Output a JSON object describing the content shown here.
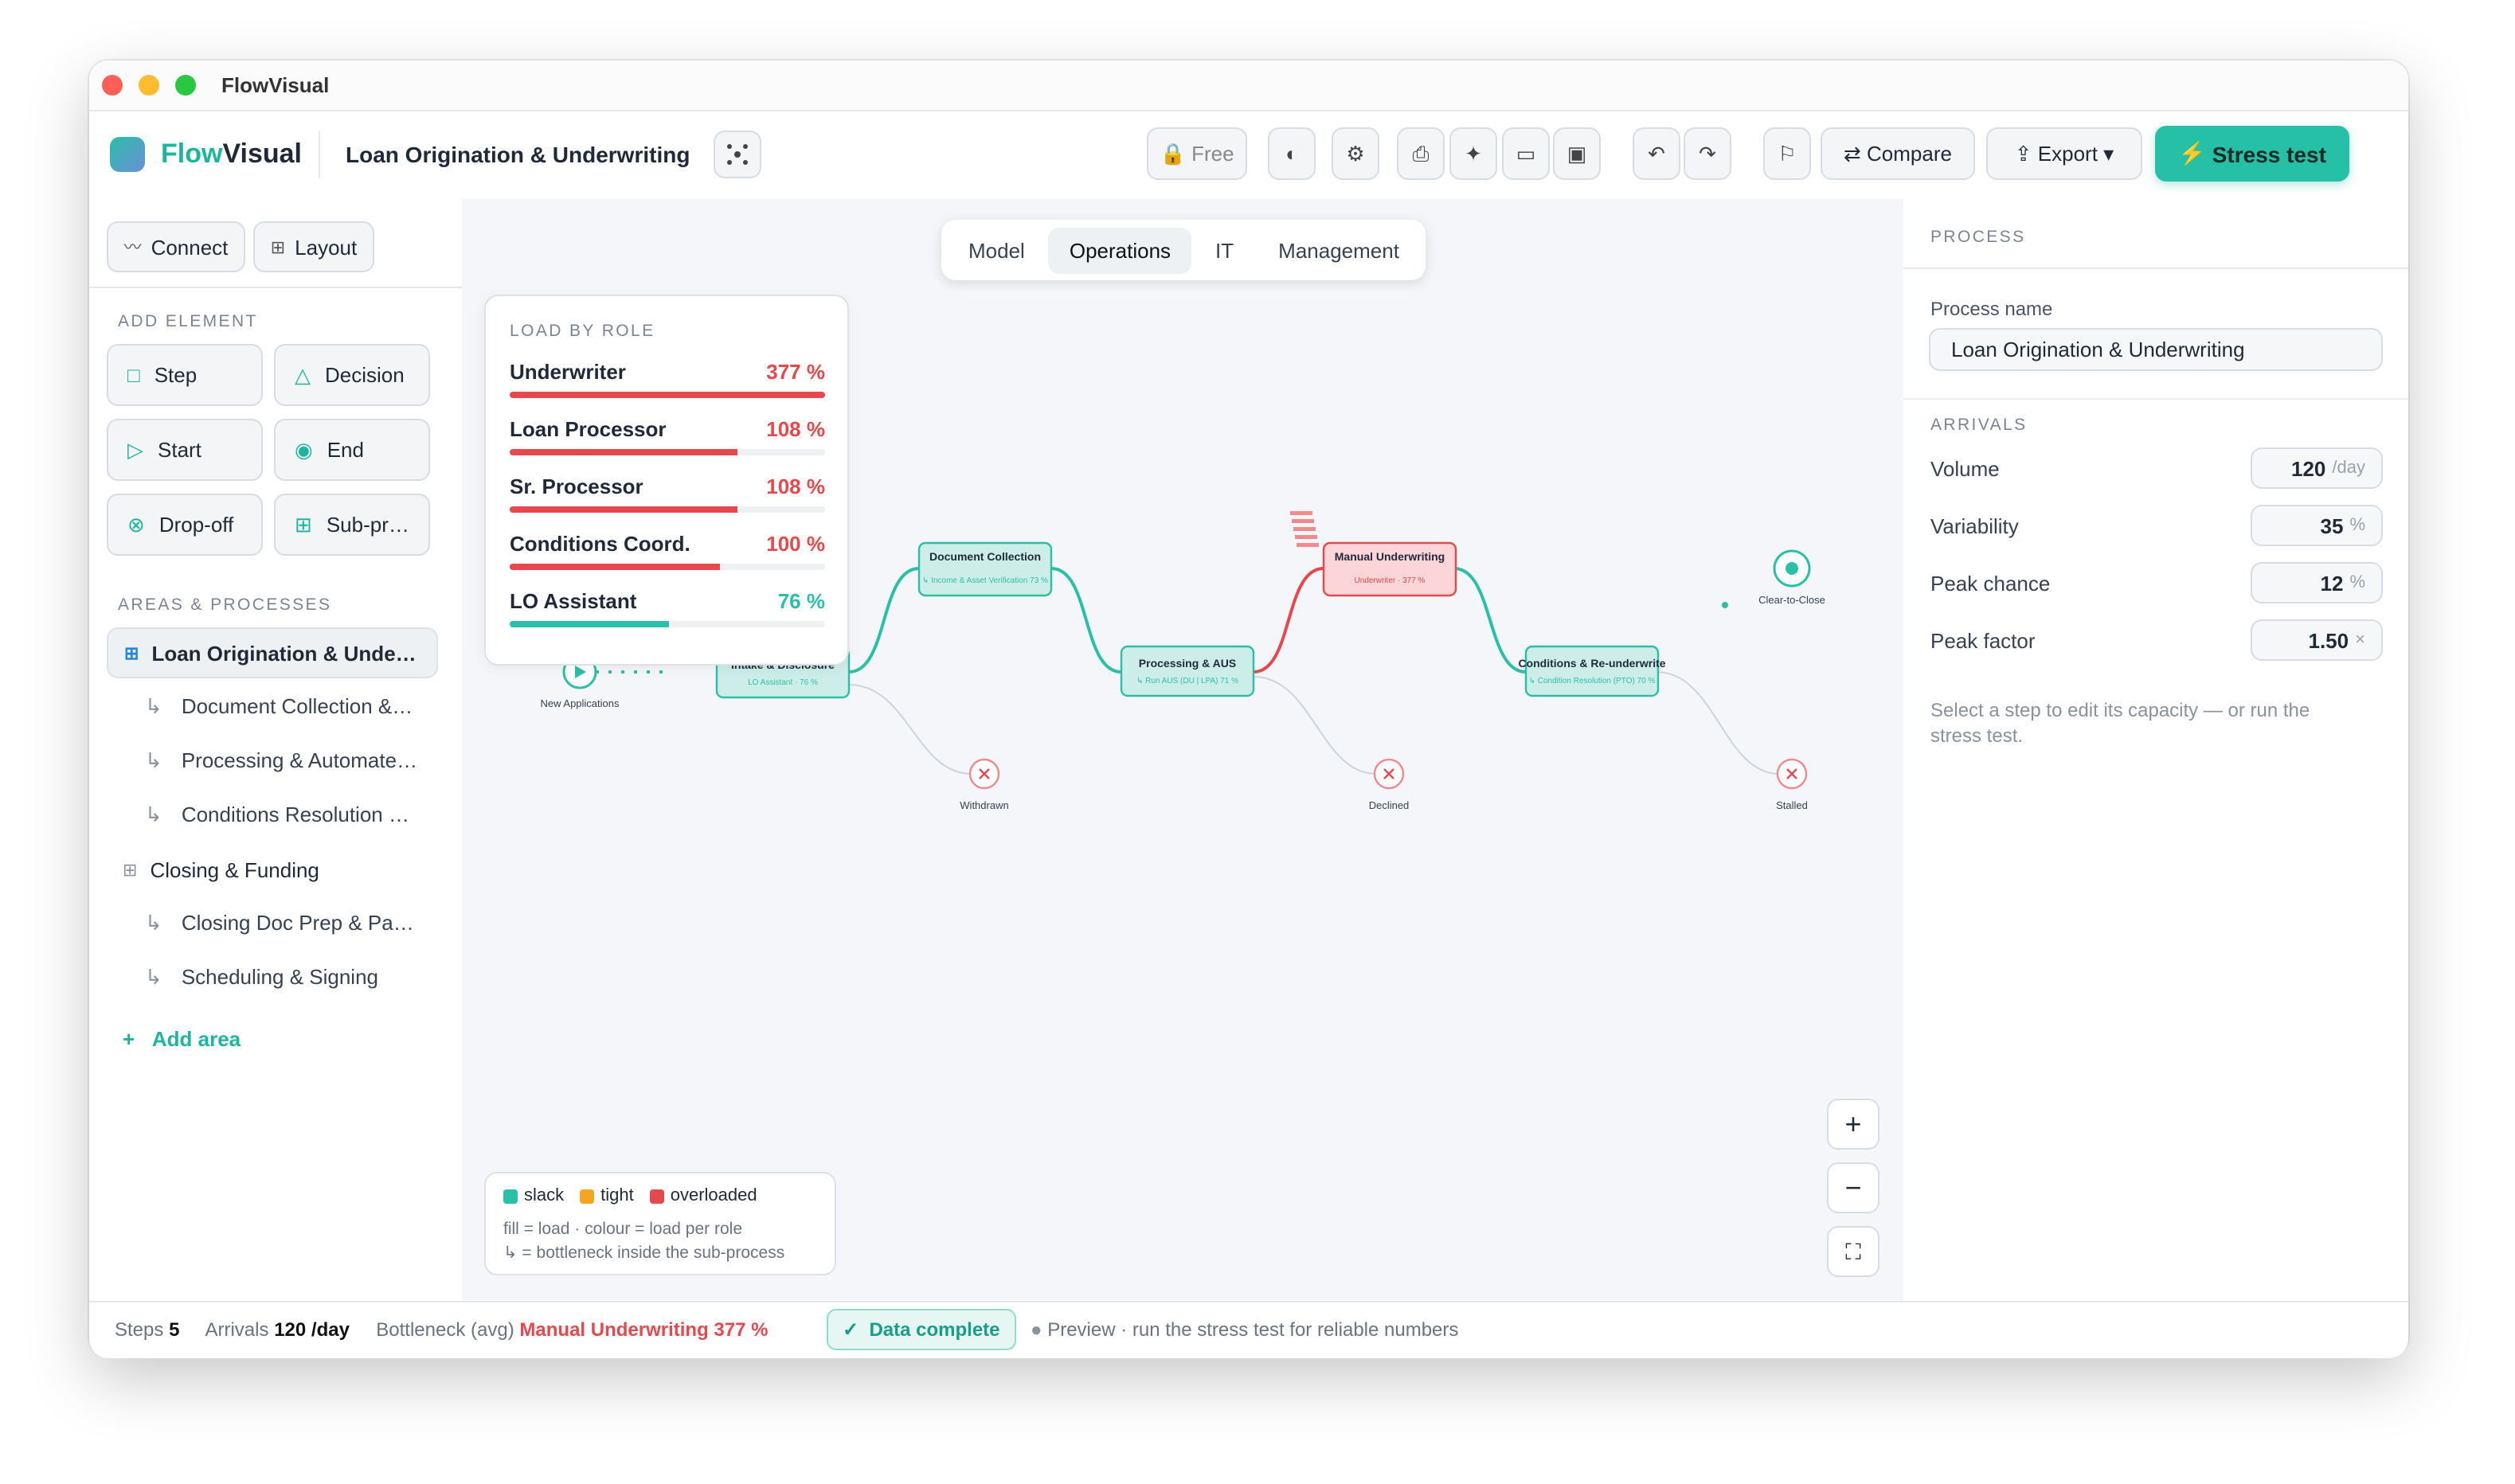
{
  "window": {
    "title": "FlowVisual"
  },
  "toolbar": {
    "brand_a": "Flow",
    "brand_b": "Visual",
    "document": "Loan Origination & Underwriting",
    "plan": "Free",
    "compare": "Compare",
    "export": "Export",
    "stress_test": "Stress test"
  },
  "sidebar": {
    "tools": [
      "Connect",
      "Layout"
    ],
    "add_element": "ADD ELEMENT",
    "elements": [
      "Step",
      "Decision",
      "Start",
      "End",
      "Drop-off",
      "Sub-pr…"
    ],
    "areas_heading": "AREAS & PROCESSES",
    "areas": [
      {
        "label": "Loan Origination & Unde…",
        "children": [
          "Document Collection &…",
          "Processing & Automate…",
          "Conditions Resolution …"
        ]
      },
      {
        "label": "Closing & Funding",
        "children": [
          "Closing Doc Prep & Pa…",
          "Scheduling & Signing"
        ]
      }
    ],
    "add_area": "Add area"
  },
  "canvas": {
    "tabs": [
      "Model",
      "Operations",
      "IT",
      "Management"
    ],
    "load": {
      "heading": "LOAD BY ROLE",
      "xlim": [
        0,
        150
      ],
      "roles": [
        {
          "name": "Underwriter",
          "value": 377,
          "label": "377 %",
          "color": "#e5484d"
        },
        {
          "name": "Loan Processor",
          "value": 108,
          "label": "108 %",
          "color": "#e5484d"
        },
        {
          "name": "Sr. Processor",
          "value": 108,
          "label": "108 %",
          "color": "#e5484d"
        },
        {
          "name": "Conditions Coord.",
          "value": 100,
          "label": "100 %",
          "color": "#e5484d"
        },
        {
          "name": "LO Assistant",
          "value": 76,
          "label": "76 %",
          "color": "#2bbfa8"
        }
      ]
    },
    "nodes": [
      {
        "label": "New Applications",
        "kind": "start"
      },
      {
        "label": "Intake & Disclosure",
        "detail": "LO Assistant · 76 %",
        "kind": "step",
        "color": "#2bbfa8"
      },
      {
        "label": "Document Collection",
        "detail": "↳ Income & Asset Verification 73 %",
        "kind": "step",
        "color": "#2bbfa8"
      },
      {
        "label": "Processing & AUS",
        "detail": "↳ Run AUS (DU | LPA) 71 %",
        "kind": "step",
        "color": "#2bbfa8"
      },
      {
        "label": "Manual Underwriting",
        "detail": "Underwriter · 377 %",
        "kind": "step",
        "color": "#e5484d"
      },
      {
        "label": "Conditions & Re-underwrite",
        "detail": "↳ Condition Resolution (PTO) 70 %",
        "kind": "step",
        "color": "#2bbfa8"
      },
      {
        "label": "Clear-to-Close",
        "kind": "end"
      },
      {
        "label": "Withdrawn",
        "kind": "dropoff"
      },
      {
        "label": "Declined",
        "kind": "dropoff"
      },
      {
        "label": "Stalled",
        "kind": "dropoff"
      }
    ],
    "legend": {
      "items": [
        {
          "name": "slack",
          "color": "#2bbfa8"
        },
        {
          "name": "tight",
          "color": "#f5a524"
        },
        {
          "name": "overloaded",
          "color": "#e5484d"
        }
      ],
      "notes": [
        "fill = load · colour = load per role",
        "↳ = bottleneck inside the sub-process"
      ]
    }
  },
  "panel": {
    "heading": "PROCESS",
    "name_label": "Process name",
    "name": "Loan Origination & Underwriting",
    "arrivals": "ARRIVALS",
    "fields": [
      {
        "label": "Volume",
        "value": 120,
        "unit": "/day"
      },
      {
        "label": "Variability",
        "value": 35,
        "unit": "%"
      },
      {
        "label": "Peak chance",
        "value": 12,
        "unit": "%"
      },
      {
        "label": "Peak factor",
        "value": "1.50",
        "unit": "×"
      }
    ],
    "hint": "Select a step to edit its capacity — or run the stress test."
  },
  "status": {
    "steps_label": "Steps",
    "steps": 5,
    "arrivals_label": "Arrivals",
    "arrivals": "120 /day",
    "bottleneck_label": "Bottleneck (avg)",
    "bottleneck": "Manual Underwriting 377 %",
    "data": "Data complete",
    "preview": "Preview · run the stress test for reliable numbers"
  }
}
